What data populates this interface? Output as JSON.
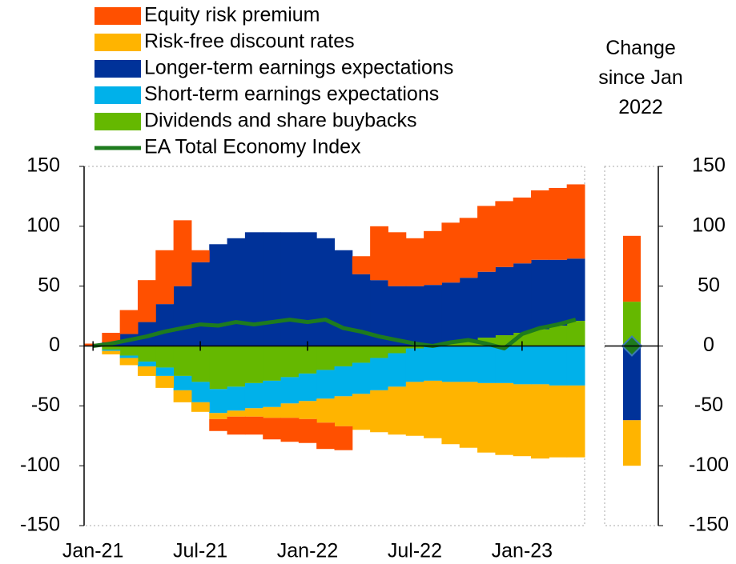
{
  "chart_data": {
    "type": "stacked-area",
    "categories": [
      "Jan-21",
      null,
      null,
      null,
      null,
      null,
      "Jul-21",
      null,
      null,
      null,
      null,
      null,
      "Jan-22",
      null,
      null,
      null,
      null,
      null,
      "Jul-22",
      null,
      null,
      null,
      null,
      null,
      "Jan-23",
      null,
      null,
      null
    ],
    "series": [
      {
        "name": "Equity risk premium",
        "color": "#ff5000",
        "values": [
          2,
          8,
          20,
          35,
          45,
          55,
          10,
          -10,
          -15,
          -15,
          -18,
          -20,
          -20,
          -22,
          -20,
          15,
          45,
          45,
          40,
          45,
          50,
          50,
          55,
          55,
          55,
          58,
          60,
          62
        ],
        "change": 55
      },
      {
        "name": "Risk-free discount rates",
        "color": "#ffb400",
        "values": [
          0,
          -3,
          -6,
          -8,
          -10,
          -10,
          -8,
          -5,
          -5,
          -7,
          -9,
          -12,
          -15,
          -20,
          -25,
          -30,
          -35,
          -40,
          -45,
          -48,
          -52,
          -55,
          -58,
          -60,
          -60,
          -62,
          -60,
          -60
        ],
        "change": -38
      },
      {
        "name": "Longer-term earnings expectations",
        "color": "#003299",
        "values": [
          0,
          3,
          10,
          20,
          35,
          50,
          70,
          85,
          90,
          95,
          95,
          95,
          95,
          90,
          80,
          60,
          55,
          50,
          50,
          50,
          50,
          52,
          55,
          57,
          58,
          58,
          55,
          52
        ],
        "change": -62
      },
      {
        "name": "Short-term earnings expectations",
        "color": "#00b1ea",
        "values": [
          0,
          -1,
          -2,
          -4,
          -7,
          -12,
          -17,
          -20,
          -20,
          -21,
          -22,
          -22,
          -23,
          -24,
          -25,
          -26,
          -27,
          -28,
          -28,
          -29,
          -30,
          -30,
          -31,
          -31,
          -32,
          -32,
          -33,
          -33
        ],
        "change": 0
      },
      {
        "name": "Dividends and share buybacks",
        "color": "#65b800",
        "values": [
          0,
          -3,
          -8,
          -13,
          -18,
          -25,
          -30,
          -36,
          -34,
          -31,
          -29,
          -26,
          -23,
          -20,
          -17,
          -14,
          -10,
          -6,
          -2,
          1,
          3,
          5,
          7,
          9,
          11,
          14,
          17,
          21
        ],
        "change": 37
      },
      {
        "name": "EA Total Economy Index",
        "color": "#1e7b1e",
        "type": "line",
        "values": [
          0,
          2,
          5,
          8,
          12,
          15,
          18,
          17,
          20,
          18,
          20,
          22,
          20,
          22,
          15,
          12,
          8,
          5,
          2,
          0,
          3,
          5,
          2,
          -2,
          10,
          15,
          18,
          22
        ],
        "change": 0
      }
    ],
    "ylim": [
      -150,
      150
    ],
    "yticks": [
      150,
      100,
      50,
      0,
      -50,
      -100,
      -150
    ],
    "side_title": "Change since Jan 2022"
  }
}
